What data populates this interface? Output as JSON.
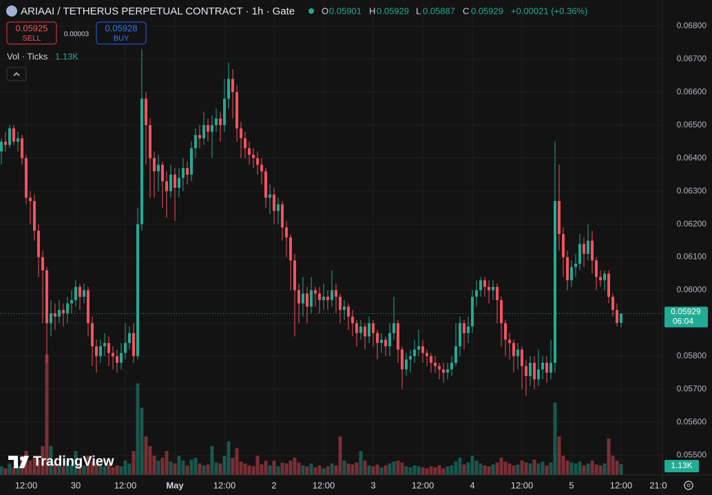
{
  "header": {
    "symbol": "ARIAAI / TETHERUS PERPETUAL CONTRACT · 1h · Gate",
    "o_label": "O",
    "h_label": "H",
    "l_label": "L",
    "c_label": "C",
    "change": "+0.00021 (+0.36%)"
  },
  "trade": {
    "sell_price": 0.05925,
    "sell": "SELL",
    "spread": 3e-05,
    "buy_price": 0.05928,
    "buy": "BUY"
  },
  "countdown": "06:04",
  "branding": "TradingView",
  "chart_data": {
    "type": "candlestick",
    "volume_name": "Vol · Ticks",
    "volume_label": "1.13K",
    "up_color": "#22ab94",
    "down_color": "#f7525f",
    "grid": true,
    "xlim": [
      -0.33,
      160
    ],
    "ylim": [
      0.0544,
      0.06879
    ],
    "xticks": [
      {
        "value": 6,
        "label": "12:00"
      },
      {
        "value": 18,
        "label": "30"
      },
      {
        "value": 30,
        "label": "12:00"
      },
      {
        "value": 42,
        "label": "May"
      },
      {
        "value": 54,
        "label": "12:00"
      },
      {
        "value": 66,
        "label": "2"
      },
      {
        "value": 78,
        "label": "12:00"
      },
      {
        "value": 90,
        "label": "3"
      },
      {
        "value": 102,
        "label": "12:00"
      },
      {
        "value": 114,
        "label": "4"
      },
      {
        "value": 126,
        "label": "12:00"
      },
      {
        "value": 138,
        "label": "5"
      },
      {
        "value": 150,
        "label": "12:00"
      },
      {
        "value": 159,
        "label": "21:0"
      }
    ],
    "yticks": [
      {
        "value": 0.068,
        "label": "0.06800"
      },
      {
        "value": 0.067,
        "label": "0.06700"
      },
      {
        "value": 0.066,
        "label": "0.06600"
      },
      {
        "value": 0.065,
        "label": "0.06500"
      },
      {
        "value": 0.064,
        "label": "0.06400"
      },
      {
        "value": 0.063,
        "label": "0.06300"
      },
      {
        "value": 0.062,
        "label": "0.06200"
      },
      {
        "value": 0.061,
        "label": "0.06100"
      },
      {
        "value": 0.06,
        "label": "0.06000"
      },
      {
        "value": 0.059,
        "label": "0.05900"
      },
      {
        "value": 0.058,
        "label": "0.05800"
      },
      {
        "value": 0.057,
        "label": "0.05700"
      },
      {
        "value": 0.056,
        "label": "0.05600"
      },
      {
        "value": 0.055,
        "label": "0.05500"
      }
    ],
    "open": [
      0.0642,
      0.0645,
      0.0644,
      0.0649,
      0.0645,
      0.0646,
      0.064,
      0.0628,
      0.0627,
      0.0618,
      0.061,
      0.0606,
      0.059,
      0.0593,
      0.0592,
      0.0594,
      0.0593,
      0.0596,
      0.0597,
      0.0601,
      0.0598,
      0.06,
      0.059,
      0.0583,
      0.058,
      0.0583,
      0.0584,
      0.0581,
      0.058,
      0.0578,
      0.0581,
      0.0584,
      0.0587,
      0.058,
      0.062,
      0.0658,
      0.065,
      0.064,
      0.0636,
      0.0638,
      0.0633,
      0.063,
      0.0635,
      0.0631,
      0.0634,
      0.0637,
      0.0635,
      0.0643,
      0.0647,
      0.0646,
      0.065,
      0.0648,
      0.065,
      0.0652,
      0.065,
      0.0658,
      0.0664,
      0.066,
      0.0649,
      0.0646,
      0.0643,
      0.0641,
      0.064,
      0.0638,
      0.0636,
      0.0628,
      0.0629,
      0.0624,
      0.0626,
      0.0619,
      0.0616,
      0.0609,
      0.06,
      0.0596,
      0.0599,
      0.0595,
      0.06,
      0.0599,
      0.0597,
      0.0598,
      0.0597,
      0.06,
      0.0598,
      0.0594,
      0.0595,
      0.0592,
      0.059,
      0.0587,
      0.0589,
      0.0586,
      0.059,
      0.0587,
      0.0584,
      0.0585,
      0.0583,
      0.0587,
      0.059,
      0.0582,
      0.0576,
      0.0579,
      0.058,
      0.0582,
      0.0583,
      0.0581,
      0.058,
      0.0578,
      0.0577,
      0.0576,
      0.0575,
      0.0576,
      0.0578,
      0.0583,
      0.059,
      0.0587,
      0.0589,
      0.0598,
      0.06,
      0.0603,
      0.0601,
      0.06,
      0.0601,
      0.0597,
      0.059,
      0.0585,
      0.0584,
      0.058,
      0.0582,
      0.0577,
      0.0574,
      0.0578,
      0.0573,
      0.0576,
      0.0578,
      0.0575,
      0.0578,
      0.0627,
      0.0617,
      0.061,
      0.0603,
      0.0607,
      0.0608,
      0.0614,
      0.0611,
      0.0615,
      0.0609,
      0.0604,
      0.0603,
      0.0605,
      0.0598,
      0.0594,
      0.05901
    ],
    "high": [
      0.0646,
      0.0648,
      0.065,
      0.065,
      0.0648,
      0.0647,
      0.0641,
      0.063,
      0.0629,
      0.062,
      0.0612,
      0.0607,
      0.0597,
      0.0596,
      0.0597,
      0.0596,
      0.0598,
      0.06,
      0.0603,
      0.0602,
      0.0602,
      0.0601,
      0.0592,
      0.0585,
      0.0585,
      0.0587,
      0.0586,
      0.0583,
      0.0582,
      0.0584,
      0.059,
      0.0589,
      0.059,
      0.0625,
      0.0673,
      0.066,
      0.0652,
      0.0642,
      0.0641,
      0.0639,
      0.0636,
      0.0638,
      0.0637,
      0.0637,
      0.064,
      0.0639,
      0.0645,
      0.0649,
      0.065,
      0.0654,
      0.0652,
      0.0653,
      0.0655,
      0.0654,
      0.0664,
      0.0669,
      0.0667,
      0.0662,
      0.0651,
      0.0648,
      0.0645,
      0.0643,
      0.0642,
      0.064,
      0.0637,
      0.0632,
      0.0631,
      0.0628,
      0.0627,
      0.0621,
      0.0617,
      0.0611,
      0.0602,
      0.0604,
      0.0601,
      0.0604,
      0.0601,
      0.0601,
      0.0602,
      0.06,
      0.0606,
      0.0602,
      0.0599,
      0.0597,
      0.0596,
      0.0594,
      0.0591,
      0.0591,
      0.059,
      0.0592,
      0.0591,
      0.0588,
      0.0587,
      0.0586,
      0.059,
      0.0598,
      0.0591,
      0.0583,
      0.0581,
      0.0582,
      0.0585,
      0.0588,
      0.0585,
      0.0582,
      0.0581,
      0.058,
      0.0578,
      0.0578,
      0.0578,
      0.058,
      0.059,
      0.0592,
      0.0591,
      0.0592,
      0.06,
      0.0603,
      0.0604,
      0.0604,
      0.0603,
      0.0603,
      0.0602,
      0.0598,
      0.0591,
      0.0587,
      0.0585,
      0.0584,
      0.0583,
      0.0579,
      0.058,
      0.058,
      0.0582,
      0.058,
      0.058,
      0.0585,
      0.0645,
      0.0638,
      0.0619,
      0.0612,
      0.0609,
      0.0611,
      0.0617,
      0.0616,
      0.062,
      0.0618,
      0.061,
      0.0606,
      0.0606,
      0.0606,
      0.0599,
      0.0596,
      0.05929
    ],
    "low": [
      0.0638,
      0.0642,
      0.0643,
      0.0644,
      0.0642,
      0.0638,
      0.0626,
      0.062,
      0.0615,
      0.0604,
      0.059,
      0.0578,
      0.0586,
      0.0588,
      0.059,
      0.0589,
      0.059,
      0.0593,
      0.0595,
      0.0594,
      0.0596,
      0.0586,
      0.0577,
      0.0575,
      0.0578,
      0.058,
      0.0577,
      0.0576,
      0.0575,
      0.0576,
      0.0579,
      0.0582,
      0.0578,
      0.0579,
      0.0618,
      0.0638,
      0.0628,
      0.0628,
      0.063,
      0.0625,
      0.0622,
      0.0628,
      0.0621,
      0.0628,
      0.063,
      0.0632,
      0.0633,
      0.064,
      0.0643,
      0.0644,
      0.0645,
      0.064,
      0.0648,
      0.0645,
      0.0648,
      0.0655,
      0.0652,
      0.0645,
      0.064,
      0.064,
      0.0638,
      0.0637,
      0.0635,
      0.0632,
      0.0625,
      0.0623,
      0.062,
      0.062,
      0.0615,
      0.061,
      0.06,
      0.0586,
      0.059,
      0.0592,
      0.059,
      0.0593,
      0.0595,
      0.0593,
      0.0594,
      0.0594,
      0.0595,
      0.0593,
      0.059,
      0.0591,
      0.0588,
      0.0586,
      0.0583,
      0.0585,
      0.0582,
      0.0584,
      0.0583,
      0.0579,
      0.0581,
      0.058,
      0.058,
      0.0585,
      0.0578,
      0.057,
      0.0574,
      0.0575,
      0.0578,
      0.058,
      0.0578,
      0.0577,
      0.0575,
      0.0575,
      0.0573,
      0.0572,
      0.0573,
      0.0574,
      0.0577,
      0.058,
      0.0582,
      0.0584,
      0.0587,
      0.0595,
      0.0598,
      0.0598,
      0.0596,
      0.0597,
      0.059,
      0.0583,
      0.058,
      0.0579,
      0.0575,
      0.0576,
      0.057,
      0.0568,
      0.0571,
      0.057,
      0.0571,
      0.0573,
      0.0572,
      0.0573,
      0.0575,
      0.0612,
      0.0604,
      0.06,
      0.0601,
      0.0604,
      0.0606,
      0.0607,
      0.0609,
      0.0605,
      0.06,
      0.0601,
      0.06,
      0.0596,
      0.0592,
      0.0589,
      0.05887
    ],
    "close": [
      0.0645,
      0.0644,
      0.0649,
      0.0645,
      0.0646,
      0.064,
      0.0628,
      0.0627,
      0.0618,
      0.061,
      0.0606,
      0.059,
      0.0593,
      0.0592,
      0.0594,
      0.0593,
      0.0596,
      0.0597,
      0.0601,
      0.0598,
      0.06,
      0.059,
      0.0583,
      0.058,
      0.0583,
      0.0584,
      0.0581,
      0.058,
      0.0578,
      0.0581,
      0.0584,
      0.0587,
      0.058,
      0.062,
      0.0658,
      0.065,
      0.064,
      0.0636,
      0.0638,
      0.0633,
      0.063,
      0.0635,
      0.0631,
      0.0634,
      0.0637,
      0.0635,
      0.0643,
      0.0647,
      0.0646,
      0.065,
      0.0648,
      0.065,
      0.0652,
      0.065,
      0.0658,
      0.0664,
      0.066,
      0.0649,
      0.0646,
      0.0643,
      0.0641,
      0.064,
      0.0638,
      0.0636,
      0.0628,
      0.0629,
      0.0624,
      0.0626,
      0.0619,
      0.0616,
      0.0609,
      0.06,
      0.0596,
      0.0599,
      0.0595,
      0.06,
      0.0599,
      0.0597,
      0.0598,
      0.0597,
      0.06,
      0.0598,
      0.0594,
      0.0595,
      0.0592,
      0.059,
      0.0587,
      0.0589,
      0.0586,
      0.059,
      0.0587,
      0.0584,
      0.0585,
      0.0583,
      0.0587,
      0.059,
      0.0582,
      0.0576,
      0.0579,
      0.058,
      0.0582,
      0.0583,
      0.0581,
      0.058,
      0.0578,
      0.0577,
      0.0576,
      0.0575,
      0.0576,
      0.0578,
      0.0583,
      0.059,
      0.0587,
      0.0589,
      0.0598,
      0.06,
      0.0603,
      0.0601,
      0.06,
      0.0601,
      0.0597,
      0.059,
      0.0585,
      0.0584,
      0.058,
      0.0582,
      0.0577,
      0.0574,
      0.0578,
      0.0573,
      0.0576,
      0.0578,
      0.0575,
      0.0578,
      0.0627,
      0.0617,
      0.061,
      0.0603,
      0.0607,
      0.0608,
      0.0614,
      0.0611,
      0.0615,
      0.0609,
      0.0604,
      0.0603,
      0.0605,
      0.0598,
      0.0594,
      0.05901,
      0.05929
    ],
    "volume": [
      900,
      700,
      1200,
      800,
      1000,
      2000,
      2500,
      1500,
      1800,
      1600,
      3000,
      12500,
      3000,
      1200,
      1000,
      900,
      1500,
      1100,
      2500,
      1300,
      1000,
      2000,
      1400,
      1200,
      1000,
      900,
      1100,
      800,
      1000,
      900,
      1500,
      1200,
      2500,
      9500,
      7000,
      4000,
      3000,
      2000,
      1500,
      1800,
      2500,
      1400,
      1200,
      2000,
      1500,
      1000,
      1600,
      1800,
      1200,
      1000,
      1100,
      3000,
      1300,
      1200,
      2000,
      3500,
      1800,
      2800,
      1400,
      1200,
      1000,
      900,
      2000,
      1100,
      1500,
      1000,
      1500,
      900,
      1300,
      1200,
      1500,
      1800,
      1300,
      1000,
      900,
      1200,
      800,
      1000,
      700,
      900,
      1200,
      1000,
      4000,
      1500,
      1200,
      1100,
      1300,
      2500,
      1500,
      1000,
      900,
      1100,
      800,
      1000,
      1200,
      1400,
      1500,
      1300,
      900,
      800,
      1000,
      900,
      800,
      700,
      900,
      800,
      1000,
      700,
      900,
      1000,
      1400,
      1800,
      1100,
      1300,
      2000,
      1500,
      1200,
      1000,
      900,
      1100,
      1300,
      1800,
      1400,
      1200,
      1000,
      1100,
      1500,
      1300,
      1200,
      1600,
      1200,
      1400,
      1000,
      1300,
      7500,
      4000,
      2000,
      1500,
      1300,
      1200,
      1400,
      1000,
      1200,
      1500,
      1100,
      1000,
      1200,
      3800,
      2000,
      1500,
      1130
    ]
  }
}
